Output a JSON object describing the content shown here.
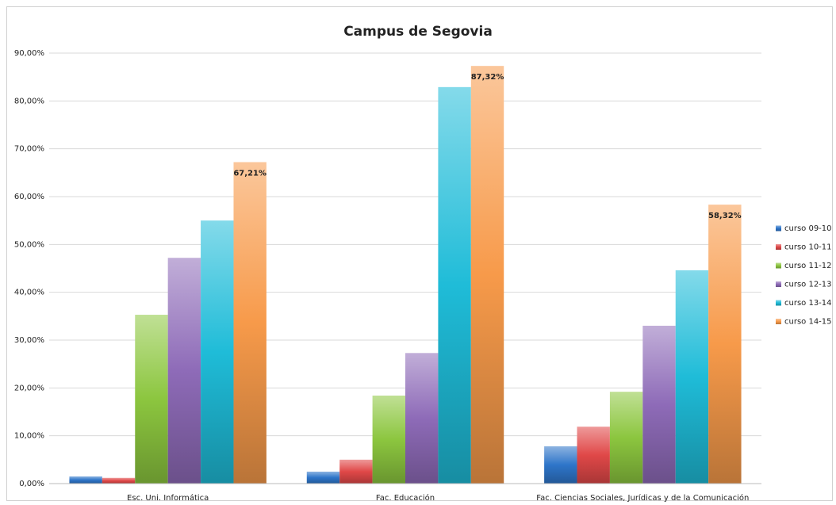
{
  "chart_data": {
    "type": "bar",
    "title": "Campus de Segovia",
    "categories": [
      "Esc. Uni. Informática",
      "Fac. Educación",
      "Fac. Ciencias Sociales, Jurídicas y de la Comunicación"
    ],
    "series": [
      {
        "name": "curso 09-10",
        "color": "#2e75c9",
        "values": [
          1.5,
          2.5,
          7.8
        ]
      },
      {
        "name": "curso 10-11",
        "color": "#e04848",
        "values": [
          1.2,
          5.0,
          11.9
        ]
      },
      {
        "name": "curso 11-12",
        "color": "#8cc63f",
        "values": [
          35.3,
          18.4,
          19.2
        ]
      },
      {
        "name": "curso 12-13",
        "color": "#8e6bb8",
        "values": [
          47.2,
          27.3,
          33.0
        ]
      },
      {
        "name": "curso 13-14",
        "color": "#1fbcd8",
        "values": [
          55.0,
          82.9,
          44.6
        ]
      },
      {
        "name": "curso 14-15",
        "color": "#f79a4a",
        "values": [
          67.21,
          87.32,
          58.32
        ],
        "value_labels": [
          "67,21%",
          "87,32%",
          "58,32%"
        ]
      }
    ],
    "ylim": [
      0,
      90
    ],
    "yticks": [
      {
        "value": 0,
        "label": "0,00%"
      },
      {
        "value": 10,
        "label": "10,00%"
      },
      {
        "value": 20,
        "label": "20,00%"
      },
      {
        "value": 30,
        "label": "30,00%"
      },
      {
        "value": 40,
        "label": "40,00%"
      },
      {
        "value": 50,
        "label": "50,00%"
      },
      {
        "value": 60,
        "label": "60,00%"
      },
      {
        "value": 70,
        "label": "70,00%"
      },
      {
        "value": 80,
        "label": "80,00%"
      },
      {
        "value": 90,
        "label": "90,00%"
      }
    ],
    "grid": true,
    "legend": "right"
  }
}
